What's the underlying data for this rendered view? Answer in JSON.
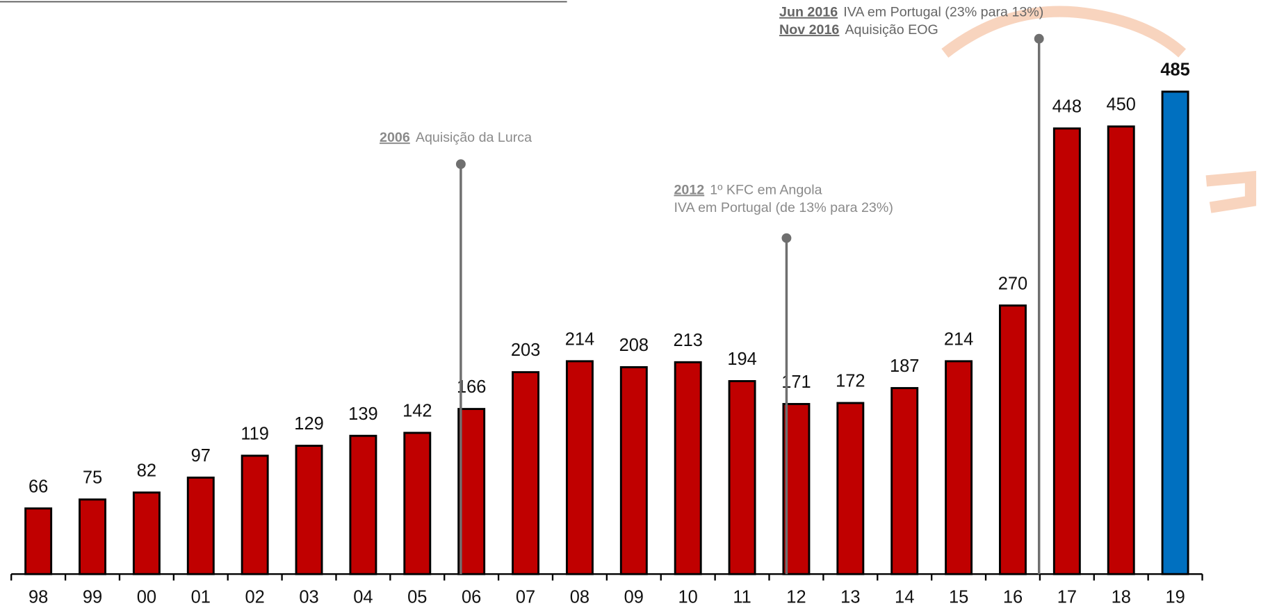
{
  "chart_data": {
    "type": "bar",
    "categories": [
      "98",
      "99",
      "00",
      "01",
      "02",
      "03",
      "04",
      "05",
      "06",
      "07",
      "08",
      "09",
      "10",
      "11",
      "12",
      "13",
      "14",
      "15",
      "16",
      "17",
      "18",
      "19"
    ],
    "values": [
      66,
      75,
      82,
      97,
      119,
      129,
      139,
      142,
      166,
      203,
      214,
      208,
      213,
      194,
      171,
      172,
      187,
      214,
      270,
      448,
      450,
      485
    ],
    "colors": [
      "#c00000",
      "#c00000",
      "#c00000",
      "#c00000",
      "#c00000",
      "#c00000",
      "#c00000",
      "#c00000",
      "#c00000",
      "#c00000",
      "#c00000",
      "#c00000",
      "#c00000",
      "#c00000",
      "#c00000",
      "#c00000",
      "#c00000",
      "#c00000",
      "#c00000",
      "#c00000",
      "#c00000",
      "#0070c0"
    ],
    "ylim": [
      0,
      577
    ],
    "annotations": [
      {
        "lines": [
          {
            "year": "2006",
            "text": "Aquisição da Lurca"
          }
        ]
      },
      {
        "lines": [
          {
            "year": "2012",
            "text": "1º KFC em  Angola"
          },
          {
            "year": null,
            "text": "IVA em  Portugal (de 13% para 23%)"
          }
        ]
      },
      {
        "lines": [
          {
            "year": "Jun 2016",
            "text": "IVA em Portugal (23% para 13%)"
          },
          {
            "year": "Nov 2016",
            "text": "Aquisição EOG"
          }
        ]
      }
    ]
  }
}
